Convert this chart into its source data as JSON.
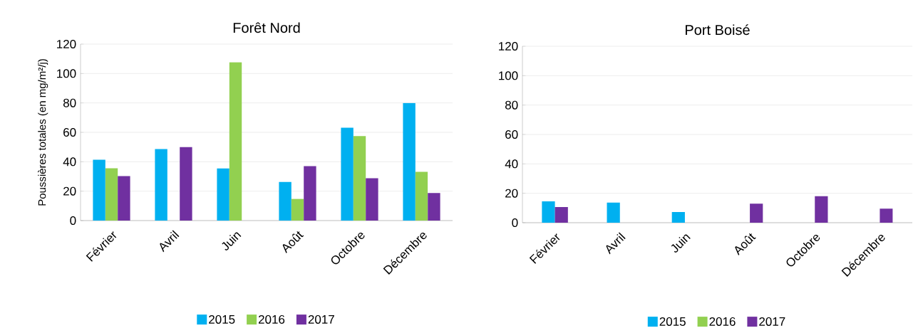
{
  "chart_data": [
    {
      "type": "bar",
      "title": "Forêt Nord",
      "ylabel": "Poussières totales (en mg/m²/j)",
      "categories": [
        "Février",
        "Avril",
        "Juin",
        "Août",
        "Octobre",
        "Décembre"
      ],
      "series": [
        {
          "name": "2015",
          "color": "#00b0f0",
          "values": [
            41.4,
            48.6,
            35.4,
            26.3,
            63.1,
            80
          ]
        },
        {
          "name": "2016",
          "color": "#92d050",
          "values": [
            35.6,
            null,
            107.7,
            14.7,
            57.4,
            33.1
          ]
        },
        {
          "name": "2017",
          "color": "#7030a0",
          "values": [
            30.2,
            50,
            null,
            37,
            28.8,
            18.7
          ]
        }
      ],
      "ylim": [
        0,
        120
      ],
      "yticks": [
        0,
        20,
        40,
        60,
        80,
        100,
        120
      ],
      "grid": "y",
      "legend": "bottom"
    },
    {
      "type": "bar",
      "title": "Port Boisé",
      "categories": [
        "Février",
        "Avril",
        "Juin",
        "Août",
        "Octobre",
        "Décembre"
      ],
      "series": [
        {
          "name": "2015",
          "color": "#00b0f0",
          "values": [
            14.5,
            13.7,
            7.3,
            null,
            null,
            null
          ]
        },
        {
          "name": "2016",
          "color": "#92d050",
          "values": [
            null,
            null,
            null,
            null,
            null,
            null
          ]
        },
        {
          "name": "2017",
          "color": "#7030a0",
          "values": [
            10.7,
            null,
            null,
            13,
            18,
            9.6
          ]
        }
      ],
      "ylim": [
        0,
        120
      ],
      "yticks": [
        0,
        20,
        40,
        60,
        80,
        100,
        120
      ],
      "grid": "y",
      "legend": "bottom"
    }
  ]
}
